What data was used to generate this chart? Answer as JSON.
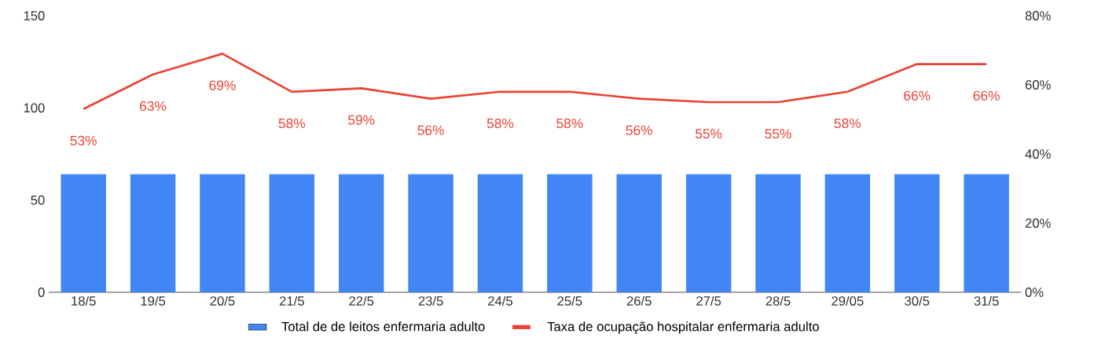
{
  "chart_data": {
    "type": "bar",
    "categories": [
      "18/5",
      "19/5",
      "20/5",
      "21/5",
      "22/5",
      "23/5",
      "24/5",
      "25/5",
      "26/5",
      "27/5",
      "28/5",
      "29/05",
      "30/5",
      "31/5"
    ],
    "series": [
      {
        "name": "Total de de leitos enfermaria adulto",
        "color": "#4285f4",
        "values": [
          64,
          64,
          64,
          64,
          64,
          64,
          64,
          64,
          64,
          64,
          64,
          64,
          64,
          64
        ]
      },
      {
        "name": "Taxa de ocupação hospitalar enfermaria adulto",
        "type": "line",
        "axis": "y2",
        "color": "#ea4335",
        "values": [
          53,
          63,
          69,
          58,
          59,
          56,
          58,
          58,
          56,
          55,
          55,
          58,
          66,
          66
        ],
        "value_labels": [
          "53%",
          "63%",
          "69%",
          "58%",
          "59%",
          "56%",
          "58%",
          "58%",
          "56%",
          "55%",
          "55%",
          "58%",
          "66%",
          "66%"
        ]
      }
    ],
    "ylim": [
      0,
      150
    ],
    "yticks": [
      0,
      50,
      100,
      150
    ],
    "y2lim": [
      0,
      80
    ],
    "y2ticks": [
      {
        "value": 0,
        "label": "0%"
      },
      {
        "value": 20,
        "label": "20%"
      },
      {
        "value": 40,
        "label": "40%"
      },
      {
        "value": 60,
        "label": "60%"
      },
      {
        "value": 80,
        "label": "80%"
      }
    ],
    "legend": "bottom",
    "grid": false
  }
}
